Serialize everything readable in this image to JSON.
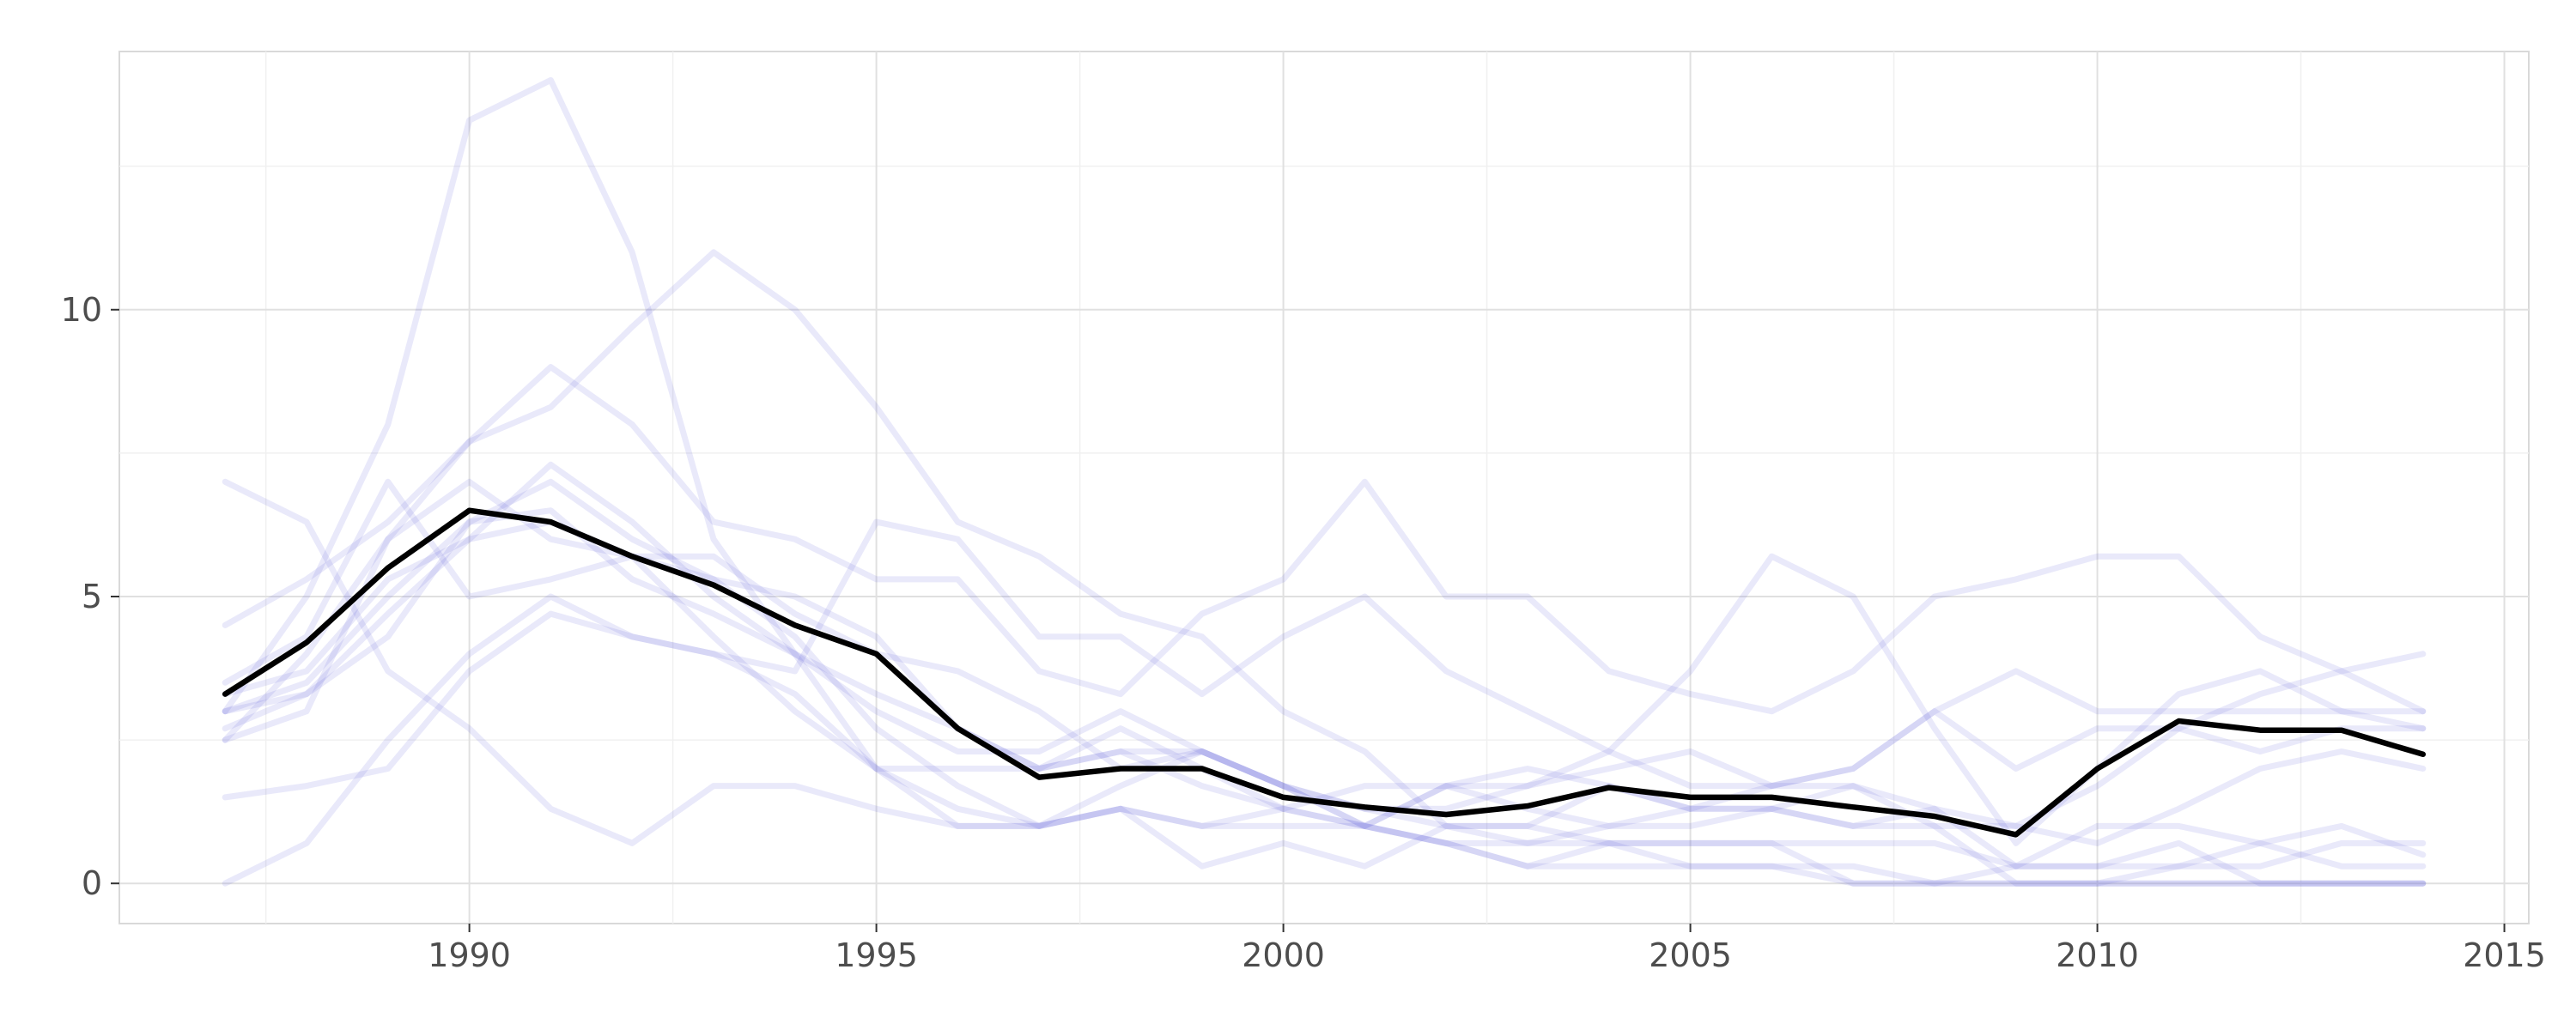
{
  "chart_data": {
    "type": "line",
    "title": "",
    "xlabel": "",
    "ylabel": "",
    "xlim": [
      1985.7,
      2015.3
    ],
    "ylim": [
      -0.7,
      14.5
    ],
    "x_ticks": [
      1990,
      1995,
      2000,
      2005,
      2010,
      2015
    ],
    "x_tick_labels": [
      "1990",
      "1995",
      "2000",
      "2005",
      "2010",
      "2015"
    ],
    "y_ticks": [
      0,
      5,
      10
    ],
    "y_tick_labels": [
      "0",
      "5",
      "10"
    ],
    "grid": true,
    "legend": "none",
    "x": [
      1987,
      1988,
      1989,
      1990,
      1991,
      1992,
      1993,
      1994,
      1995,
      1996,
      1997,
      1998,
      1999,
      2000,
      2001,
      2002,
      2003,
      2004,
      2005,
      2006,
      2007,
      2008,
      2009,
      2010,
      2011,
      2012,
      2013,
      2014
    ],
    "background_series_color": "#6666dd",
    "highlight_color": "#000000",
    "background_series": [
      {
        "values": [
          0.0,
          0.7,
          2.5,
          4.0,
          5.0,
          4.3,
          4.0,
          3.3,
          2.0,
          1.3,
          1.0,
          1.7,
          2.3,
          1.7,
          1.0,
          0.7,
          0.7,
          1.0,
          1.0,
          1.3,
          1.0,
          1.3,
          1.0,
          0.7,
          1.3,
          2.0,
          2.3,
          2.0
        ]
      },
      {
        "values": [
          3.0,
          5.0,
          8.0,
          13.3,
          14.0,
          11.0,
          6.0,
          4.0,
          2.0,
          1.0,
          1.0,
          1.3,
          1.0,
          1.0,
          1.0,
          0.7,
          0.3,
          0.7,
          0.7,
          0.7,
          0.7,
          0.7,
          0.3,
          0.3,
          0.3,
          0.3,
          0.7,
          0.7
        ]
      },
      {
        "values": [
          2.5,
          4.0,
          6.0,
          7.7,
          8.3,
          9.7,
          11.0,
          10.0,
          8.3,
          6.3,
          5.7,
          4.7,
          4.3,
          3.0,
          2.3,
          1.0,
          1.0,
          1.7,
          1.3,
          1.3,
          1.7,
          1.3,
          0.3,
          0.3,
          0.7,
          0.0,
          0.0,
          0.0
        ]
      },
      {
        "values": [
          4.5,
          5.3,
          6.3,
          7.7,
          9.0,
          8.0,
          6.3,
          6.0,
          5.3,
          5.3,
          3.7,
          3.3,
          4.7,
          5.3,
          7.0,
          5.0,
          5.0,
          3.7,
          3.3,
          3.0,
          3.7,
          5.0,
          5.3,
          5.7,
          5.7,
          4.3,
          3.7,
          3.0
        ]
      },
      {
        "values": [
          7.0,
          6.3,
          3.7,
          2.7,
          1.3,
          0.7,
          1.7,
          1.7,
          1.3,
          1.0,
          1.0,
          1.3,
          0.3,
          0.7,
          0.3,
          1.0,
          1.0,
          0.7,
          0.3,
          0.3,
          0.0,
          0.0,
          0.3,
          1.0,
          1.0,
          0.7,
          0.3,
          0.3
        ]
      },
      {
        "values": [
          3.3,
          3.7,
          5.3,
          6.0,
          7.3,
          6.3,
          5.0,
          4.0,
          3.0,
          2.3,
          2.3,
          3.0,
          2.3,
          1.7,
          1.3,
          1.0,
          0.7,
          0.7,
          0.7,
          0.7,
          0.0,
          0.0,
          0.0,
          0.0,
          0.0,
          0.0,
          0.0,
          0.0
        ]
      },
      {
        "values": [
          1.5,
          1.7,
          2.0,
          3.7,
          4.7,
          4.3,
          4.0,
          3.7,
          6.3,
          6.0,
          4.3,
          4.3,
          3.3,
          4.3,
          5.0,
          3.7,
          3.0,
          2.3,
          1.7,
          1.7,
          2.0,
          3.0,
          3.7,
          3.0,
          3.0,
          3.0,
          3.0,
          3.0
        ]
      },
      {
        "values": [
          3.5,
          4.3,
          7.0,
          5.0,
          5.3,
          5.7,
          5.7,
          4.7,
          4.0,
          3.7,
          3.0,
          2.0,
          2.3,
          1.7,
          1.0,
          1.7,
          2.0,
          1.7,
          1.3,
          1.3,
          1.0,
          1.0,
          0.0,
          0.0,
          0.0,
          0.0,
          0.0,
          0.0
        ]
      },
      {
        "values": [
          2.5,
          3.0,
          6.0,
          7.0,
          6.0,
          5.7,
          4.3,
          3.0,
          2.0,
          2.0,
          2.0,
          2.3,
          1.7,
          1.3,
          1.0,
          1.7,
          1.7,
          2.3,
          3.7,
          5.7,
          5.0,
          2.7,
          0.7,
          2.0,
          3.3,
          3.7,
          3.0,
          2.7
        ]
      },
      {
        "values": [
          3.0,
          3.3,
          4.3,
          6.3,
          7.0,
          6.0,
          5.3,
          4.3,
          2.7,
          1.7,
          1.0,
          1.3,
          1.0,
          1.3,
          1.7,
          1.7,
          1.3,
          1.0,
          1.3,
          1.7,
          2.0,
          3.0,
          2.0,
          2.7,
          2.7,
          2.3,
          2.7,
          2.7
        ]
      },
      {
        "values": [
          3.0,
          3.5,
          5.0,
          6.3,
          6.5,
          5.3,
          4.7,
          4.0,
          3.3,
          2.7,
          2.0,
          2.7,
          2.0,
          1.3,
          1.0,
          0.7,
          0.3,
          0.3,
          0.3,
          0.3,
          0.3,
          0.0,
          0.0,
          0.0,
          0.3,
          0.7,
          1.0,
          0.5
        ]
      },
      {
        "values": [
          2.7,
          3.3,
          4.7,
          6.0,
          6.3,
          5.7,
          5.3,
          5.0,
          4.3,
          2.7,
          2.0,
          2.3,
          2.3,
          1.7,
          1.3,
          1.3,
          1.7,
          2.0,
          2.3,
          1.7,
          1.7,
          1.0,
          1.0,
          1.7,
          2.7,
          3.3,
          3.7,
          4.0
        ]
      }
    ],
    "series": [
      {
        "values": [
          3.3,
          4.2,
          5.5,
          6.5,
          6.3,
          5.7,
          5.2,
          4.5,
          4.0,
          2.7,
          1.85,
          2.0,
          2.0,
          1.5,
          1.33,
          1.2,
          1.35,
          1.67,
          1.5,
          1.5,
          1.33,
          1.17,
          0.85,
          2.0,
          2.83,
          2.67,
          2.67,
          2.25
        ]
      }
    ]
  }
}
